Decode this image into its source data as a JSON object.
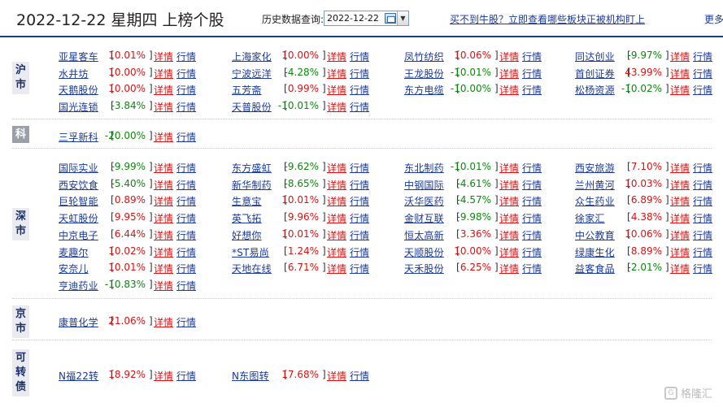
{
  "header": {
    "date_title": "2022-12-22 星期四 上榜个股",
    "query_label": "历史数据查询:",
    "date_value": "2022-12-22",
    "promo_text": "买不到牛股？立即查看哪些板块正被机构盯上",
    "more_text": "更多"
  },
  "labels": {
    "detail": "详情",
    "quote": "行情"
  },
  "watermark": {
    "text": "格隆汇",
    "logo": "G"
  },
  "sections": [
    {
      "tag": "沪市",
      "stocks": [
        {
          "name": "亚星客车",
          "pct": "10.01%",
          "dir": "up"
        },
        {
          "name": "上海家化",
          "pct": "10.00%",
          "dir": "up"
        },
        {
          "name": "凤竹纺织",
          "pct": "10.06%",
          "dir": "up"
        },
        {
          "name": "同达创业",
          "pct": "-9.97%",
          "dir": "down"
        },
        {
          "name": "水井坊",
          "pct": "10.00%",
          "dir": "up"
        },
        {
          "name": "宁波远洋",
          "pct": "-4.28%",
          "dir": "down"
        },
        {
          "name": "王龙股份",
          "pct": "-10.01%",
          "dir": "down"
        },
        {
          "name": "首创证券",
          "pct": "43.99%",
          "dir": "up"
        },
        {
          "name": "天鹅股份",
          "pct": "10.00%",
          "dir": "up"
        },
        {
          "name": "五芳斋",
          "pct": "0.99%",
          "dir": "up"
        },
        {
          "name": "东方电缆",
          "pct": "-10.00%",
          "dir": "down"
        },
        {
          "name": "松杨资源",
          "pct": "-10.02%",
          "dir": "down"
        },
        {
          "name": "国光连锁",
          "pct": "-3.84%",
          "dir": "down"
        },
        {
          "name": "天普股份",
          "pct": "-10.01%",
          "dir": "down"
        }
      ]
    },
    {
      "tag": "科",
      "stocks": [
        {
          "name": "三孚新科",
          "pct": "-20.00%",
          "dir": "down"
        }
      ]
    },
    {
      "tag": "深市",
      "stocks": [
        {
          "name": "国际实业",
          "pct": "-9.99%",
          "dir": "down"
        },
        {
          "name": "东方盛虹",
          "pct": "-9.62%",
          "dir": "down"
        },
        {
          "name": "东北制药",
          "pct": "-10.01%",
          "dir": "down"
        },
        {
          "name": "西安旅游",
          "pct": "7.10%",
          "dir": "up"
        },
        {
          "name": "西安饮食",
          "pct": "-5.40%",
          "dir": "down"
        },
        {
          "name": "新华制药",
          "pct": "-8.65%",
          "dir": "down"
        },
        {
          "name": "中钢国际",
          "pct": "-4.61%",
          "dir": "down"
        },
        {
          "name": "兰州黄河",
          "pct": "10.03%",
          "dir": "up"
        },
        {
          "name": "巨轮智能",
          "pct": "0.89%",
          "dir": "up"
        },
        {
          "name": "生意宝",
          "pct": "10.01%",
          "dir": "up"
        },
        {
          "name": "沃华医药",
          "pct": "-4.57%",
          "dir": "down"
        },
        {
          "name": "众生药业",
          "pct": "6.89%",
          "dir": "up"
        },
        {
          "name": "天虹股份",
          "pct": "9.95%",
          "dir": "up"
        },
        {
          "name": "英飞拓",
          "pct": "9.96%",
          "dir": "up"
        },
        {
          "name": "金财互联",
          "pct": "-9.98%",
          "dir": "down"
        },
        {
          "name": "徐家汇",
          "pct": "4.38%",
          "dir": "up"
        },
        {
          "name": "中京电子",
          "pct": "6.44%",
          "dir": "up"
        },
        {
          "name": "好想你",
          "pct": "10.01%",
          "dir": "up"
        },
        {
          "name": "恒太高新",
          "pct": "3.36%",
          "dir": "up"
        },
        {
          "name": "中公教育",
          "pct": "10.06%",
          "dir": "up"
        },
        {
          "name": "麦趣尔",
          "pct": "10.02%",
          "dir": "up"
        },
        {
          "name": "*ST易尚",
          "pct": "1.24%",
          "dir": "up"
        },
        {
          "name": "天顺股份",
          "pct": "10.00%",
          "dir": "up"
        },
        {
          "name": "绿康生化",
          "pct": "8.89%",
          "dir": "up"
        },
        {
          "name": "安奈儿",
          "pct": "10.01%",
          "dir": "up"
        },
        {
          "name": "天地在线",
          "pct": "6.71%",
          "dir": "up"
        },
        {
          "name": "天禾股份",
          "pct": "6.25%",
          "dir": "up"
        },
        {
          "name": "益客食品",
          "pct": "-2.01%",
          "dir": "down"
        },
        {
          "name": "亨迪药业",
          "pct": "-10.83%",
          "dir": "down"
        }
      ]
    },
    {
      "tag": "京市",
      "stocks": [
        {
          "name": "康普化学",
          "pct": "21.06%",
          "dir": "up"
        }
      ]
    },
    {
      "tag": "可转债",
      "stocks": [
        {
          "name": "N福22转",
          "pct": "18.92%",
          "dir": "up"
        },
        {
          "name": "N东图转",
          "pct": "17.68%",
          "dir": "up"
        }
      ]
    }
  ]
}
